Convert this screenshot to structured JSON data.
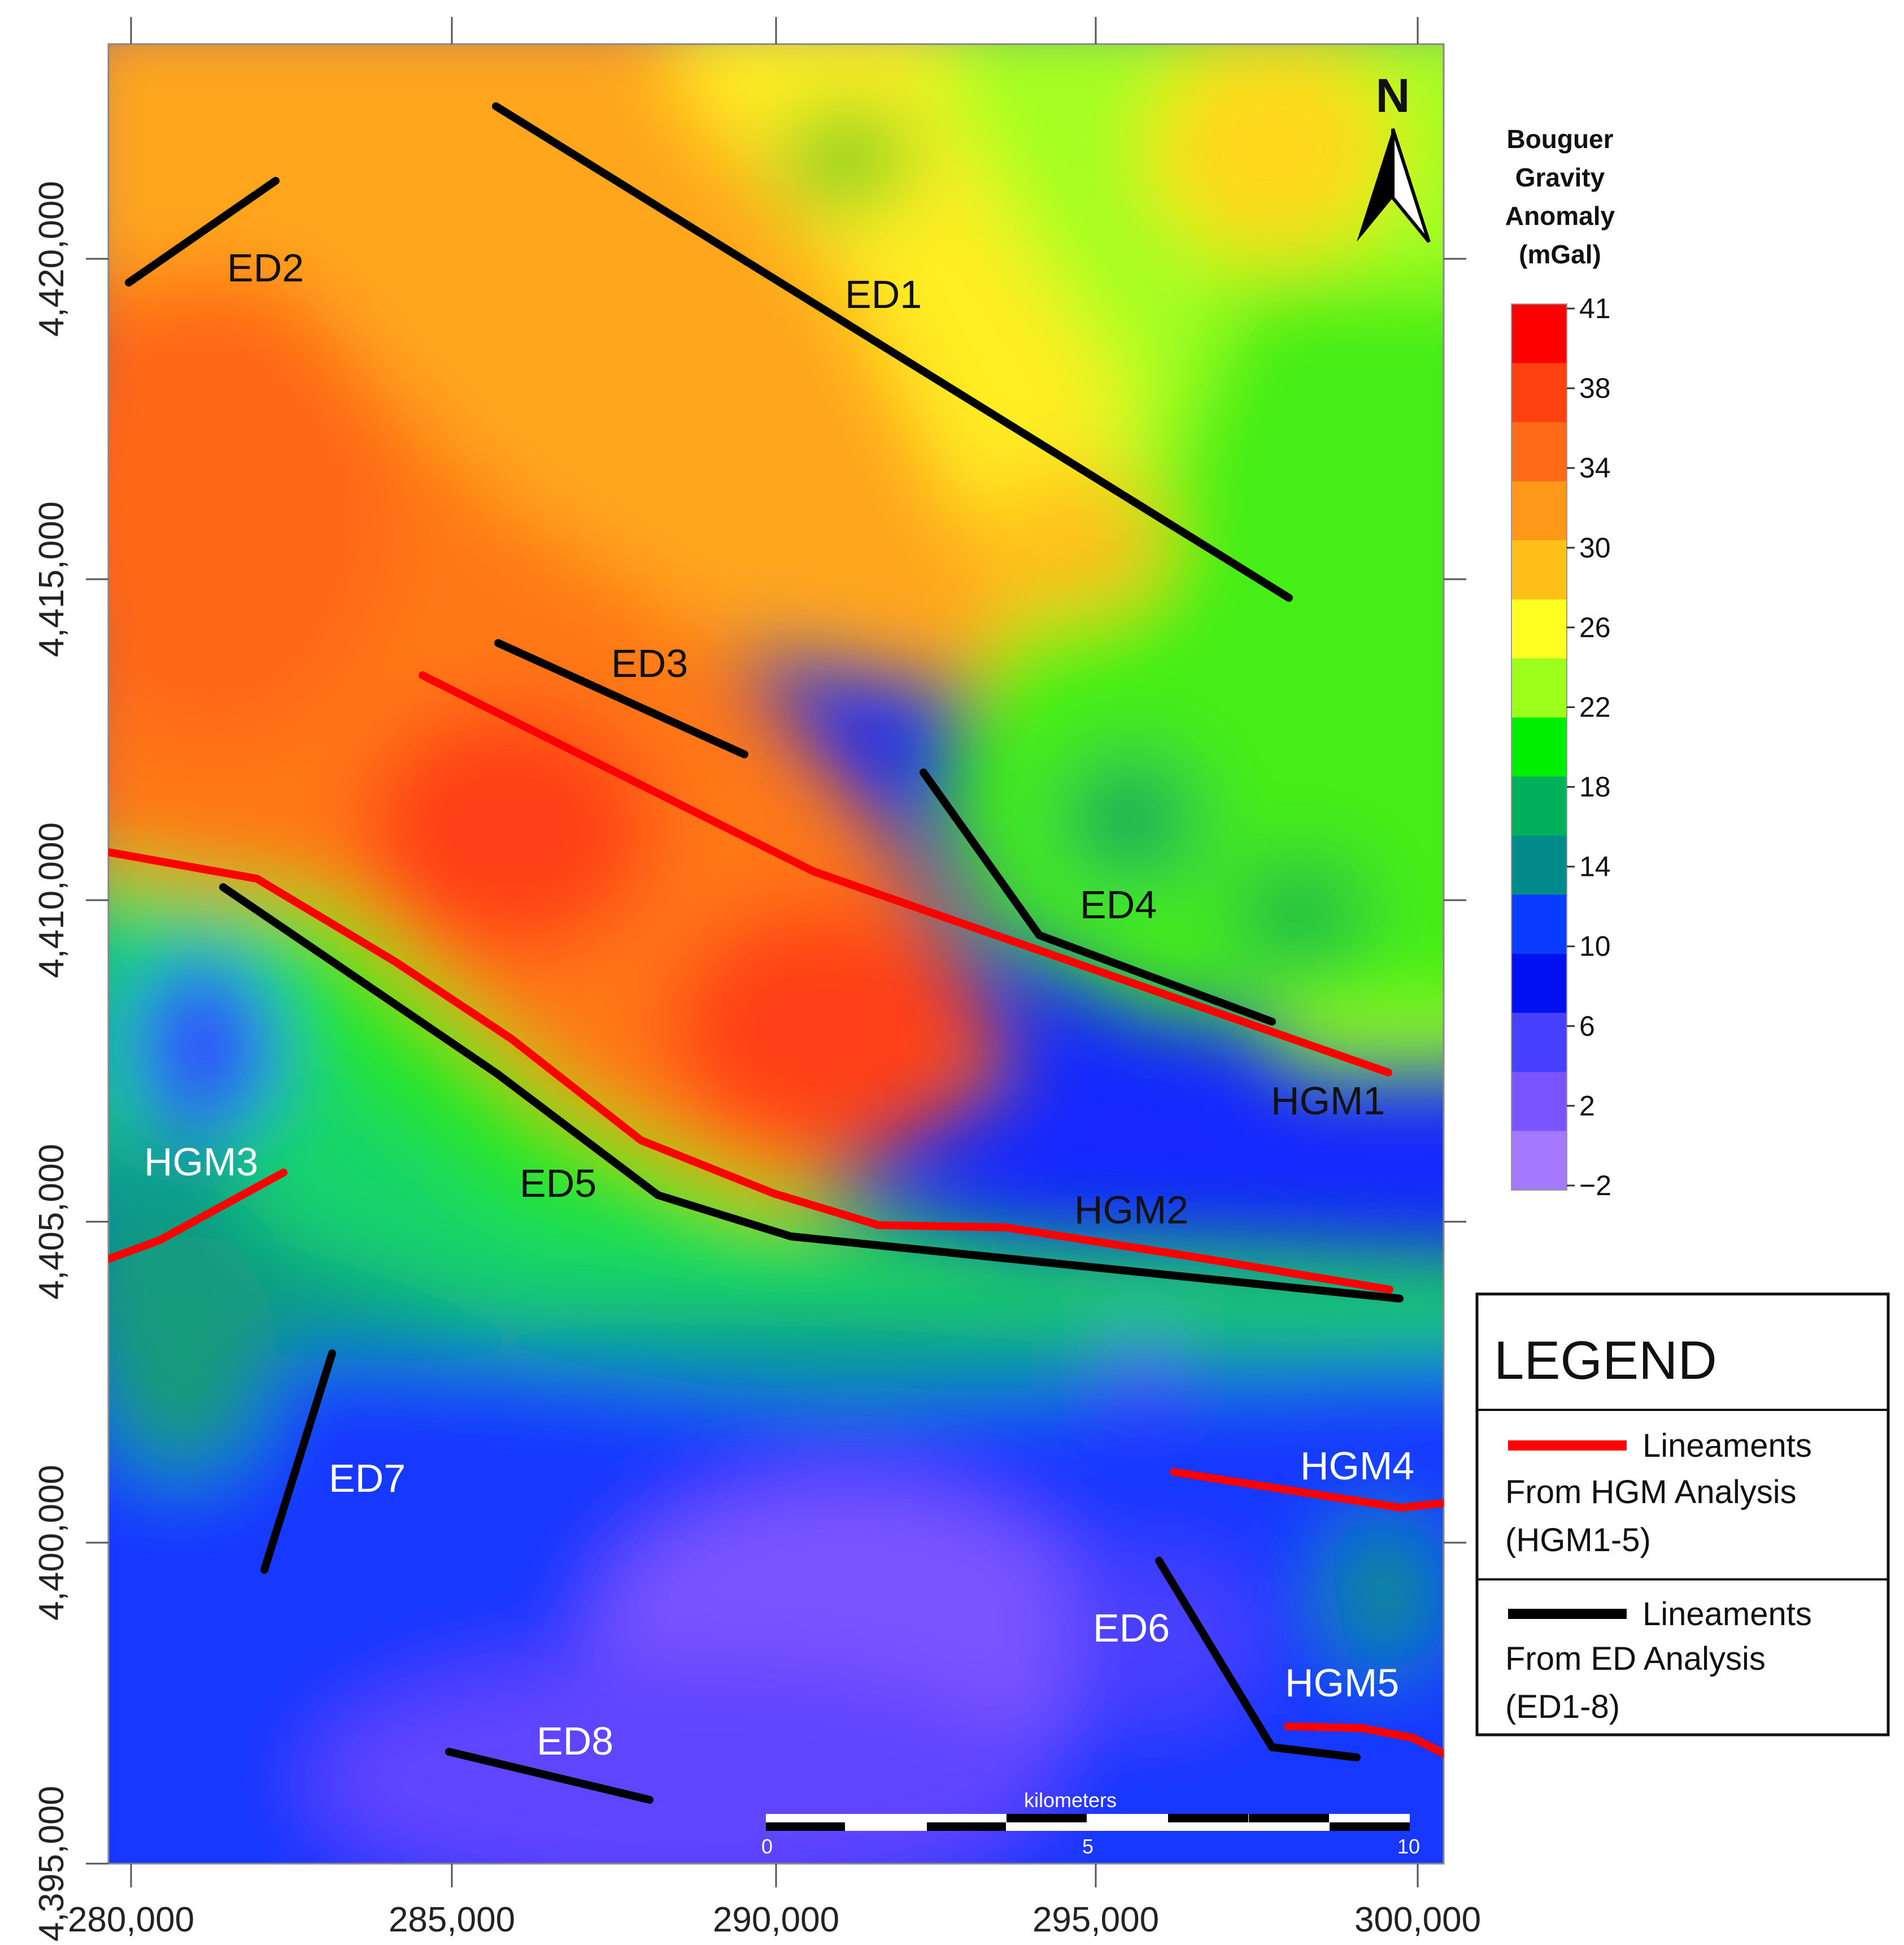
{
  "map": {
    "x_ticks": [
      "280,000",
      "285,000",
      "290,000",
      "295,000",
      "300,000"
    ],
    "y_ticks": [
      "4,420,000",
      "4,415,000",
      "4,410,000",
      "4,405,000",
      "4,400,000",
      "4,395,000"
    ],
    "north_label": "N"
  },
  "colorbar": {
    "title": [
      "Bouguer",
      "Gravity",
      "Anomaly",
      "(mGal)"
    ],
    "labels": [
      "41",
      "38",
      "34",
      "30",
      "26",
      "22",
      "18",
      "14",
      "10",
      "6",
      "2",
      "−2"
    ],
    "colors": [
      "#ff0000",
      "#ff4010",
      "#ff6a18",
      "#ff9818",
      "#ffc018",
      "#ffff22",
      "#9dff1c",
      "#00ee00",
      "#00b05a",
      "#008a8a",
      "#0a3cff",
      "#0010f0",
      "#4840ff",
      "#7a55ff",
      "#a478ff"
    ]
  },
  "scale_bar": {
    "unit": "kilometers",
    "labels": [
      "0",
      "5",
      "10"
    ]
  },
  "legend": {
    "title": "LEGEND",
    "hgm_lines": [
      "Lineaments",
      "From HGM Analysis",
      "(HGM1-5)"
    ],
    "ed_lines": [
      "Lineaments",
      "From ED Analysis",
      "(ED1-8)"
    ],
    "hgm_color": "#ff0000",
    "ed_color": "#000000"
  },
  "lineaments": {
    "ed": [
      "ED1",
      "ED2",
      "ED3",
      "ED4",
      "ED5",
      "ED6",
      "ED7",
      "ED8"
    ],
    "hgm": [
      "HGM1",
      "HGM2",
      "HGM3",
      "HGM4",
      "HGM5"
    ]
  }
}
